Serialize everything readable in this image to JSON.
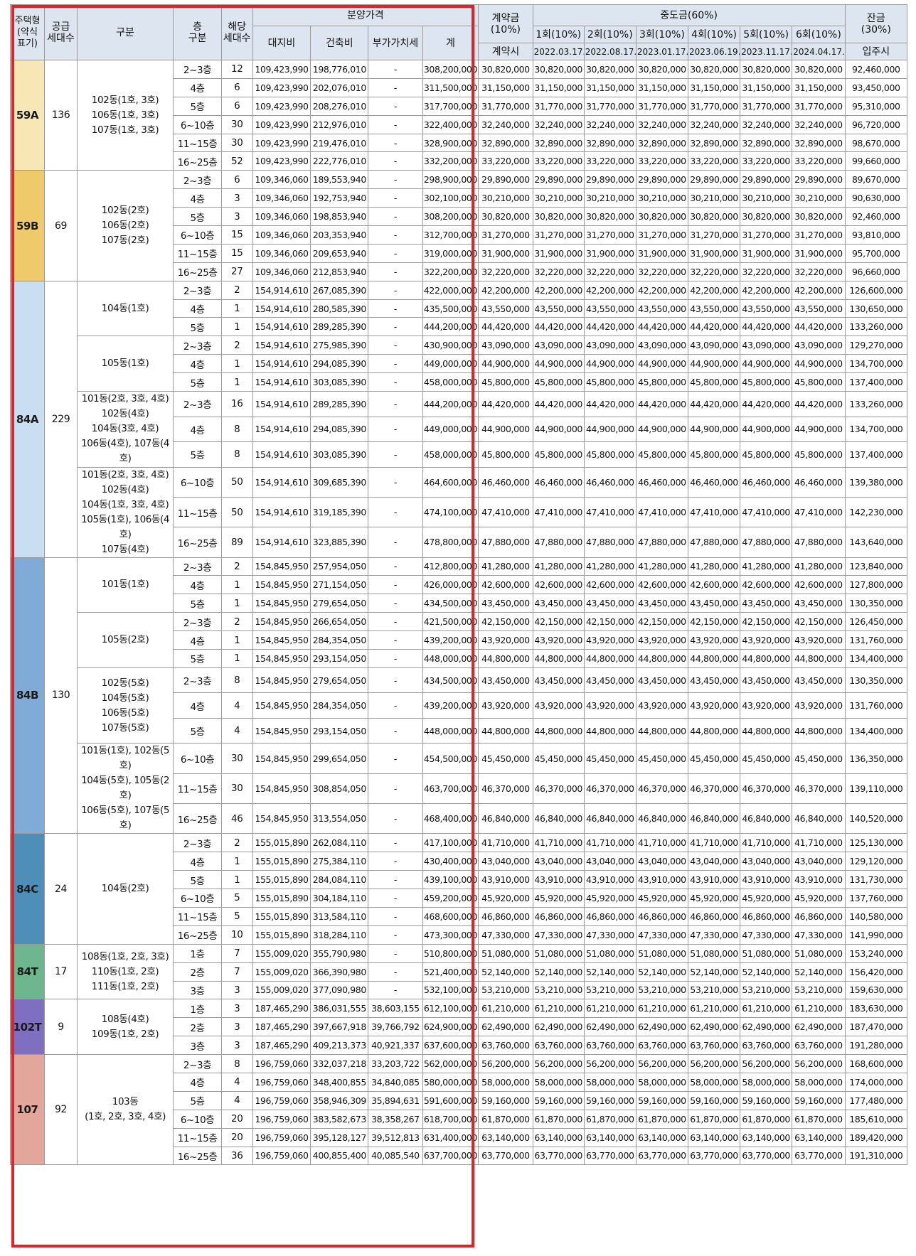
{
  "header": {
    "type": "주택형\n(약식\n표기)",
    "supply": "공급\n세대수",
    "group": "구분",
    "floor": "층\n구분",
    "units": "해당\n세대수",
    "price": "분양가격",
    "land": "대지비",
    "build": "건축비",
    "vat": "부가가치세",
    "total": "계",
    "contract": "계약금\n(10%)",
    "contract_sub": "계약시",
    "middle": "중도금(60%)",
    "mid_labels": [
      "1회(10%)",
      "2회(10%)",
      "3회(10%)",
      "4회(10%)",
      "5회(10%)",
      "6회(10%)"
    ],
    "mid_dates": [
      "2022.03.17.",
      "2022.08.17.",
      "2023.01.17.",
      "2023.06.19.",
      "2023.11.17.",
      "2024.04.17."
    ],
    "balance": "잔금\n(30%)",
    "balance_sub": "입주시"
  },
  "types": [
    {
      "name": "59A",
      "color": "#f6e7b5",
      "supply": "136",
      "rows": 6
    },
    {
      "name": "59B",
      "color": "#efca6a",
      "supply": "69",
      "rows": 6
    },
    {
      "name": "84A",
      "color": "#c9def0",
      "supply": "229",
      "rows": 12
    },
    {
      "name": "84B",
      "color": "#7fabd6",
      "supply": "130",
      "rows": 12
    },
    {
      "name": "84C",
      "color": "#4d8fb8",
      "supply": "24",
      "rows": 6
    },
    {
      "name": "84T",
      "color": "#6db68e",
      "supply": "17",
      "rows": 3
    },
    {
      "name": "102T",
      "color": "#7e6fc0",
      "supply": "9",
      "rows": 3
    },
    {
      "name": "107",
      "color": "#e2a69a",
      "supply": "92",
      "rows": 6
    }
  ],
  "groups": [
    {
      "text": "102동(1호, 3호)\n106동(1호, 3호)\n107동(1호, 3호)",
      "rows": 6
    },
    {
      "text": "102동(2호)\n106동(2호)\n107동(2호)",
      "rows": 6
    },
    {
      "text": "104동(1호)",
      "rows": 3
    },
    {
      "text": "105동(1호)",
      "rows": 3
    },
    {
      "text": "101동(2호, 3호, 4호)\n102동(4호)\n104동(3호, 4호)\n106동(4호), 107동(4호)",
      "rows": 3
    },
    {
      "text": "101동(2호, 3호, 4호)\n102동(4호)\n104동(1호, 3호, 4호)\n105동(1호), 106동(4호)\n107동(4호)",
      "rows": 3
    },
    {
      "text": "101동(1호)",
      "rows": 3
    },
    {
      "text": "105동(2호)",
      "rows": 3
    },
    {
      "text": "102동(5호)\n104동(5호)\n106동(5호)\n107동(5호)",
      "rows": 3
    },
    {
      "text": "101동(1호), 102동(5호)\n104동(5호), 105동(2호)\n106동(5호), 107동(5호)",
      "rows": 3
    },
    {
      "text": "104동(2호)",
      "rows": 6
    },
    {
      "text": "108동(1호, 2호, 3호)\n110동(1호, 2호)\n111동(1호, 2호)",
      "rows": 3
    },
    {
      "text": "108동(4호)\n109동(1호, 2호)",
      "rows": 3
    },
    {
      "text": "103동\n(1호, 2호, 3호, 4호)",
      "rows": 6
    }
  ],
  "rows": [
    [
      "2~3층",
      "12",
      "109,423,990",
      "198,776,010",
      "-",
      "308,200,000",
      "30,820,000",
      "30,820,000",
      "30,820,000",
      "30,820,000",
      "30,820,000",
      "30,820,000",
      "30,820,000",
      "92,460,000"
    ],
    [
      "4층",
      "6",
      "109,423,990",
      "202,076,010",
      "-",
      "311,500,000",
      "31,150,000",
      "31,150,000",
      "31,150,000",
      "31,150,000",
      "31,150,000",
      "31,150,000",
      "31,150,000",
      "93,450,000"
    ],
    [
      "5층",
      "6",
      "109,423,990",
      "208,276,010",
      "-",
      "317,700,000",
      "31,770,000",
      "31,770,000",
      "31,770,000",
      "31,770,000",
      "31,770,000",
      "31,770,000",
      "31,770,000",
      "95,310,000"
    ],
    [
      "6~10층",
      "30",
      "109,423,990",
      "212,976,010",
      "-",
      "322,400,000",
      "32,240,000",
      "32,240,000",
      "32,240,000",
      "32,240,000",
      "32,240,000",
      "32,240,000",
      "32,240,000",
      "96,720,000"
    ],
    [
      "11~15층",
      "30",
      "109,423,990",
      "219,476,010",
      "-",
      "328,900,000",
      "32,890,000",
      "32,890,000",
      "32,890,000",
      "32,890,000",
      "32,890,000",
      "32,890,000",
      "32,890,000",
      "98,670,000"
    ],
    [
      "16~25층",
      "52",
      "109,423,990",
      "222,776,010",
      "-",
      "332,200,000",
      "33,220,000",
      "33,220,000",
      "33,220,000",
      "33,220,000",
      "33,220,000",
      "33,220,000",
      "33,220,000",
      "99,660,000"
    ],
    [
      "2~3층",
      "6",
      "109,346,060",
      "189,553,940",
      "-",
      "298,900,000",
      "29,890,000",
      "29,890,000",
      "29,890,000",
      "29,890,000",
      "29,890,000",
      "29,890,000",
      "29,890,000",
      "89,670,000"
    ],
    [
      "4층",
      "3",
      "109,346,060",
      "192,753,940",
      "-",
      "302,100,000",
      "30,210,000",
      "30,210,000",
      "30,210,000",
      "30,210,000",
      "30,210,000",
      "30,210,000",
      "30,210,000",
      "90,630,000"
    ],
    [
      "5층",
      "3",
      "109,346,060",
      "198,853,940",
      "-",
      "308,200,000",
      "30,820,000",
      "30,820,000",
      "30,820,000",
      "30,820,000",
      "30,820,000",
      "30,820,000",
      "30,820,000",
      "92,460,000"
    ],
    [
      "6~10층",
      "15",
      "109,346,060",
      "203,353,940",
      "-",
      "312,700,000",
      "31,270,000",
      "31,270,000",
      "31,270,000",
      "31,270,000",
      "31,270,000",
      "31,270,000",
      "31,270,000",
      "93,810,000"
    ],
    [
      "11~15층",
      "15",
      "109,346,060",
      "209,653,940",
      "-",
      "319,000,000",
      "31,900,000",
      "31,900,000",
      "31,900,000",
      "31,900,000",
      "31,900,000",
      "31,900,000",
      "31,900,000",
      "95,700,000"
    ],
    [
      "16~25층",
      "27",
      "109,346,060",
      "212,853,940",
      "-",
      "322,200,000",
      "32,220,000",
      "32,220,000",
      "32,220,000",
      "32,220,000",
      "32,220,000",
      "32,220,000",
      "32,220,000",
      "96,660,000"
    ],
    [
      "2~3층",
      "2",
      "154,914,610",
      "267,085,390",
      "-",
      "422,000,000",
      "42,200,000",
      "42,200,000",
      "42,200,000",
      "42,200,000",
      "42,200,000",
      "42,200,000",
      "42,200,000",
      "126,600,000"
    ],
    [
      "4층",
      "1",
      "154,914,610",
      "280,585,390",
      "-",
      "435,500,000",
      "43,550,000",
      "43,550,000",
      "43,550,000",
      "43,550,000",
      "43,550,000",
      "43,550,000",
      "43,550,000",
      "130,650,000"
    ],
    [
      "5층",
      "1",
      "154,914,610",
      "289,285,390",
      "-",
      "444,200,000",
      "44,420,000",
      "44,420,000",
      "44,420,000",
      "44,420,000",
      "44,420,000",
      "44,420,000",
      "44,420,000",
      "133,260,000"
    ],
    [
      "2~3층",
      "2",
      "154,914,610",
      "275,985,390",
      "-",
      "430,900,000",
      "43,090,000",
      "43,090,000",
      "43,090,000",
      "43,090,000",
      "43,090,000",
      "43,090,000",
      "43,090,000",
      "129,270,000"
    ],
    [
      "4층",
      "1",
      "154,914,610",
      "294,085,390",
      "-",
      "449,000,000",
      "44,900,000",
      "44,900,000",
      "44,900,000",
      "44,900,000",
      "44,900,000",
      "44,900,000",
      "44,900,000",
      "134,700,000"
    ],
    [
      "5층",
      "1",
      "154,914,610",
      "303,085,390",
      "-",
      "458,000,000",
      "45,800,000",
      "45,800,000",
      "45,800,000",
      "45,800,000",
      "45,800,000",
      "45,800,000",
      "45,800,000",
      "137,400,000"
    ],
    [
      "2~3층",
      "16",
      "154,914,610",
      "289,285,390",
      "-",
      "444,200,000",
      "44,420,000",
      "44,420,000",
      "44,420,000",
      "44,420,000",
      "44,420,000",
      "44,420,000",
      "44,420,000",
      "133,260,000"
    ],
    [
      "4층",
      "8",
      "154,914,610",
      "294,085,390",
      "-",
      "449,000,000",
      "44,900,000",
      "44,900,000",
      "44,900,000",
      "44,900,000",
      "44,900,000",
      "44,900,000",
      "44,900,000",
      "134,700,000"
    ],
    [
      "5층",
      "8",
      "154,914,610",
      "303,085,390",
      "-",
      "458,000,000",
      "45,800,000",
      "45,800,000",
      "45,800,000",
      "45,800,000",
      "45,800,000",
      "45,800,000",
      "45,800,000",
      "137,400,000"
    ],
    [
      "6~10층",
      "50",
      "154,914,610",
      "309,685,390",
      "-",
      "464,600,000",
      "46,460,000",
      "46,460,000",
      "46,460,000",
      "46,460,000",
      "46,460,000",
      "46,460,000",
      "46,460,000",
      "139,380,000"
    ],
    [
      "11~15층",
      "50",
      "154,914,610",
      "319,185,390",
      "-",
      "474,100,000",
      "47,410,000",
      "47,410,000",
      "47,410,000",
      "47,410,000",
      "47,410,000",
      "47,410,000",
      "47,410,000",
      "142,230,000"
    ],
    [
      "16~25층",
      "89",
      "154,914,610",
      "323,885,390",
      "-",
      "478,800,000",
      "47,880,000",
      "47,880,000",
      "47,880,000",
      "47,880,000",
      "47,880,000",
      "47,880,000",
      "47,880,000",
      "143,640,000"
    ],
    [
      "2~3층",
      "2",
      "154,845,950",
      "257,954,050",
      "-",
      "412,800,000",
      "41,280,000",
      "41,280,000",
      "41,280,000",
      "41,280,000",
      "41,280,000",
      "41,280,000",
      "41,280,000",
      "123,840,000"
    ],
    [
      "4층",
      "1",
      "154,845,950",
      "271,154,050",
      "-",
      "426,000,000",
      "42,600,000",
      "42,600,000",
      "42,600,000",
      "42,600,000",
      "42,600,000",
      "42,600,000",
      "42,600,000",
      "127,800,000"
    ],
    [
      "5층",
      "1",
      "154,845,950",
      "279,654,050",
      "-",
      "434,500,000",
      "43,450,000",
      "43,450,000",
      "43,450,000",
      "43,450,000",
      "43,450,000",
      "43,450,000",
      "43,450,000",
      "130,350,000"
    ],
    [
      "2~3층",
      "2",
      "154,845,950",
      "266,654,050",
      "-",
      "421,500,000",
      "42,150,000",
      "42,150,000",
      "42,150,000",
      "42,150,000",
      "42,150,000",
      "42,150,000",
      "42,150,000",
      "126,450,000"
    ],
    [
      "4층",
      "1",
      "154,845,950",
      "284,354,050",
      "-",
      "439,200,000",
      "43,920,000",
      "43,920,000",
      "43,920,000",
      "43,920,000",
      "43,920,000",
      "43,920,000",
      "43,920,000",
      "131,760,000"
    ],
    [
      "5층",
      "1",
      "154,845,950",
      "293,154,050",
      "-",
      "448,000,000",
      "44,800,000",
      "44,800,000",
      "44,800,000",
      "44,800,000",
      "44,800,000",
      "44,800,000",
      "44,800,000",
      "134,400,000"
    ],
    [
      "2~3층",
      "8",
      "154,845,950",
      "279,654,050",
      "-",
      "434,500,000",
      "43,450,000",
      "43,450,000",
      "43,450,000",
      "43,450,000",
      "43,450,000",
      "43,450,000",
      "43,450,000",
      "130,350,000"
    ],
    [
      "4층",
      "4",
      "154,845,950",
      "284,354,050",
      "-",
      "439,200,000",
      "43,920,000",
      "43,920,000",
      "43,920,000",
      "43,920,000",
      "43,920,000",
      "43,920,000",
      "43,920,000",
      "131,760,000"
    ],
    [
      "5층",
      "4",
      "154,845,950",
      "293,154,050",
      "-",
      "448,000,000",
      "44,800,000",
      "44,800,000",
      "44,800,000",
      "44,800,000",
      "44,800,000",
      "44,800,000",
      "44,800,000",
      "134,400,000"
    ],
    [
      "6~10층",
      "30",
      "154,845,950",
      "299,654,050",
      "-",
      "454,500,000",
      "45,450,000",
      "45,450,000",
      "45,450,000",
      "45,450,000",
      "45,450,000",
      "45,450,000",
      "45,450,000",
      "136,350,000"
    ],
    [
      "11~15층",
      "30",
      "154,845,950",
      "308,854,050",
      "-",
      "463,700,000",
      "46,370,000",
      "46,370,000",
      "46,370,000",
      "46,370,000",
      "46,370,000",
      "46,370,000",
      "46,370,000",
      "139,110,000"
    ],
    [
      "16~25층",
      "46",
      "154,845,950",
      "313,554,050",
      "-",
      "468,400,000",
      "46,840,000",
      "46,840,000",
      "46,840,000",
      "46,840,000",
      "46,840,000",
      "46,840,000",
      "46,840,000",
      "140,520,000"
    ],
    [
      "2~3층",
      "2",
      "155,015,890",
      "262,084,110",
      "-",
      "417,100,000",
      "41,710,000",
      "41,710,000",
      "41,710,000",
      "41,710,000",
      "41,710,000",
      "41,710,000",
      "41,710,000",
      "125,130,000"
    ],
    [
      "4층",
      "1",
      "155,015,890",
      "275,384,110",
      "-",
      "430,400,000",
      "43,040,000",
      "43,040,000",
      "43,040,000",
      "43,040,000",
      "43,040,000",
      "43,040,000",
      "43,040,000",
      "129,120,000"
    ],
    [
      "5층",
      "1",
      "155,015,890",
      "284,084,110",
      "-",
      "439,100,000",
      "43,910,000",
      "43,910,000",
      "43,910,000",
      "43,910,000",
      "43,910,000",
      "43,910,000",
      "43,910,000",
      "131,730,000"
    ],
    [
      "6~10층",
      "5",
      "155,015,890",
      "304,184,110",
      "-",
      "459,200,000",
      "45,920,000",
      "45,920,000",
      "45,920,000",
      "45,920,000",
      "45,920,000",
      "45,920,000",
      "45,920,000",
      "137,760,000"
    ],
    [
      "11~15층",
      "5",
      "155,015,890",
      "313,584,110",
      "-",
      "468,600,000",
      "46,860,000",
      "46,860,000",
      "46,860,000",
      "46,860,000",
      "46,860,000",
      "46,860,000",
      "46,860,000",
      "140,580,000"
    ],
    [
      "16~25층",
      "10",
      "155,015,890",
      "318,284,110",
      "-",
      "473,300,000",
      "47,330,000",
      "47,330,000",
      "47,330,000",
      "47,330,000",
      "47,330,000",
      "47,330,000",
      "47,330,000",
      "141,990,000"
    ],
    [
      "1층",
      "7",
      "155,009,020",
      "355,790,980",
      "-",
      "510,800,000",
      "51,080,000",
      "51,080,000",
      "51,080,000",
      "51,080,000",
      "51,080,000",
      "51,080,000",
      "51,080,000",
      "153,240,000"
    ],
    [
      "2층",
      "7",
      "155,009,020",
      "366,390,980",
      "-",
      "521,400,000",
      "52,140,000",
      "52,140,000",
      "52,140,000",
      "52,140,000",
      "52,140,000",
      "52,140,000",
      "52,140,000",
      "156,420,000"
    ],
    [
      "3층",
      "3",
      "155,009,020",
      "377,090,980",
      "-",
      "532,100,000",
      "53,210,000",
      "53,210,000",
      "53,210,000",
      "53,210,000",
      "53,210,000",
      "53,210,000",
      "53,210,000",
      "159,630,000"
    ],
    [
      "1층",
      "3",
      "187,465,290",
      "386,031,555",
      "38,603,155",
      "612,100,000",
      "61,210,000",
      "61,210,000",
      "61,210,000",
      "61,210,000",
      "61,210,000",
      "61,210,000",
      "61,210,000",
      "183,630,000"
    ],
    [
      "2층",
      "3",
      "187,465,290",
      "397,667,918",
      "39,766,792",
      "624,900,000",
      "62,490,000",
      "62,490,000",
      "62,490,000",
      "62,490,000",
      "62,490,000",
      "62,490,000",
      "62,490,000",
      "187,470,000"
    ],
    [
      "3층",
      "3",
      "187,465,290",
      "409,213,373",
      "40,921,337",
      "637,600,000",
      "63,760,000",
      "63,760,000",
      "63,760,000",
      "63,760,000",
      "63,760,000",
      "63,760,000",
      "63,760,000",
      "191,280,000"
    ],
    [
      "2~3층",
      "8",
      "196,759,060",
      "332,037,218",
      "33,203,722",
      "562,000,000",
      "56,200,000",
      "56,200,000",
      "56,200,000",
      "56,200,000",
      "56,200,000",
      "56,200,000",
      "56,200,000",
      "168,600,000"
    ],
    [
      "4층",
      "4",
      "196,759,060",
      "348,400,855",
      "34,840,085",
      "580,000,000",
      "58,000,000",
      "58,000,000",
      "58,000,000",
      "58,000,000",
      "58,000,000",
      "58,000,000",
      "58,000,000",
      "174,000,000"
    ],
    [
      "5층",
      "4",
      "196,759,060",
      "358,946,309",
      "35,894,631",
      "591,600,000",
      "59,160,000",
      "59,160,000",
      "59,160,000",
      "59,160,000",
      "59,160,000",
      "59,160,000",
      "59,160,000",
      "177,480,000"
    ],
    [
      "6~10층",
      "20",
      "196,759,060",
      "383,582,673",
      "38,358,267",
      "618,700,000",
      "61,870,000",
      "61,870,000",
      "61,870,000",
      "61,870,000",
      "61,870,000",
      "61,870,000",
      "61,870,000",
      "185,610,000"
    ],
    [
      "11~15층",
      "20",
      "196,759,060",
      "395,128,127",
      "39,512,813",
      "631,400,000",
      "63,140,000",
      "63,140,000",
      "63,140,000",
      "63,140,000",
      "63,140,000",
      "63,140,000",
      "63,140,000",
      "189,420,000"
    ],
    [
      "16~25층",
      "36",
      "196,759,060",
      "400,855,400",
      "40,085,540",
      "637,700,000",
      "63,770,000",
      "63,770,000",
      "63,770,000",
      "63,770,000",
      "63,770,000",
      "63,770,000",
      "63,770,000",
      "191,310,000"
    ]
  ],
  "highlight_color": "#d9262a"
}
